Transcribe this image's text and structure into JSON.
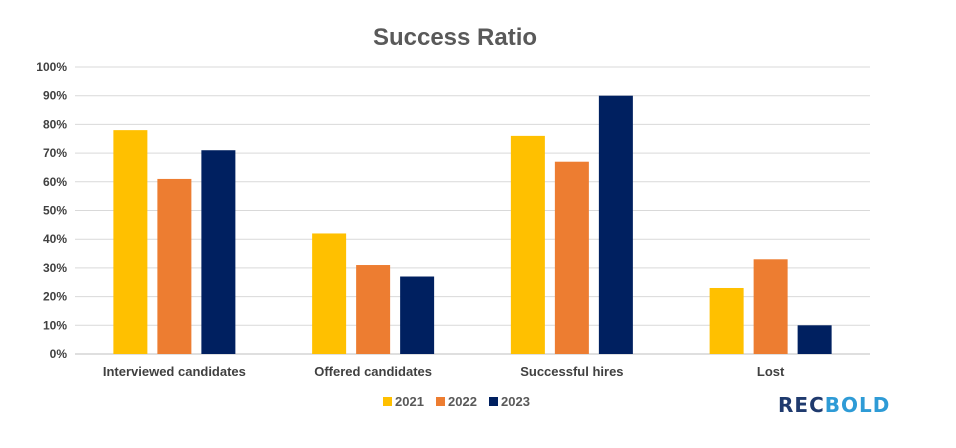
{
  "chart_data": {
    "type": "bar",
    "title": "Success Ratio",
    "xlabel": "",
    "ylabel": "",
    "ylim": [
      0,
      100
    ],
    "yticks": [
      "0%",
      "10%",
      "20%",
      "30%",
      "40%",
      "50%",
      "60%",
      "70%",
      "80%",
      "90%",
      "100%"
    ],
    "grid": true,
    "legend_position": "bottom",
    "categories": [
      "Interviewed candidates",
      "Offered candidates",
      "Successful hires",
      "Lost"
    ],
    "series": [
      {
        "name": "2021",
        "color": "#FFC000",
        "values": [
          78,
          42,
          76,
          23
        ]
      },
      {
        "name": "2022",
        "color": "#ED7D31",
        "values": [
          61,
          31,
          67,
          33
        ]
      },
      {
        "name": "2023",
        "color": "#002060",
        "values": [
          71,
          27,
          90,
          10
        ]
      }
    ]
  },
  "logo": {
    "text": "RECBOLD",
    "colors": [
      "#1F3A6E",
      "#2E9BD6"
    ]
  }
}
